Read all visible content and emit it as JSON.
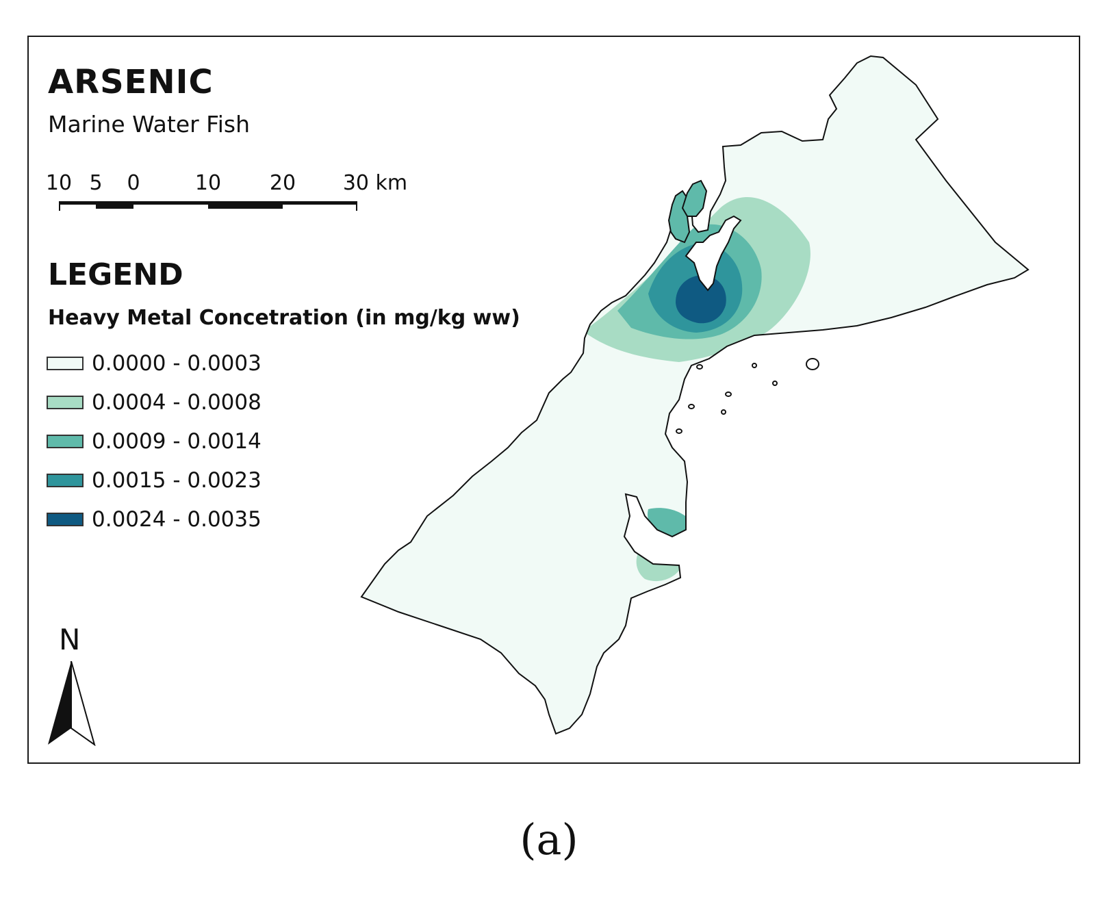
{
  "map": {
    "title": "ARSENIC",
    "subtitle": "Marine Water Fish",
    "scale_bar": {
      "labels": [
        "10",
        "5",
        "0",
        "10",
        "20",
        "30 km"
      ]
    },
    "legend": {
      "heading": "LEGEND",
      "variable": "Heavy Metal Concetration (in mg/kg ww)",
      "classes": [
        {
          "label": "0.0000 - 0.0003",
          "color": "#f1faf6"
        },
        {
          "label": "0.0004 - 0.0008",
          "color": "#a8dcc4"
        },
        {
          "label": "0.0009 - 0.0014",
          "color": "#5fbaaa"
        },
        {
          "label": "0.0015 - 0.0023",
          "color": "#2f959c"
        },
        {
          "label": "0.0024 - 0.0035",
          "color": "#0f5a82"
        }
      ]
    },
    "north_arrow": {
      "label": "N",
      "icon": "north-arrow-icon"
    }
  },
  "caption": "(a)"
}
